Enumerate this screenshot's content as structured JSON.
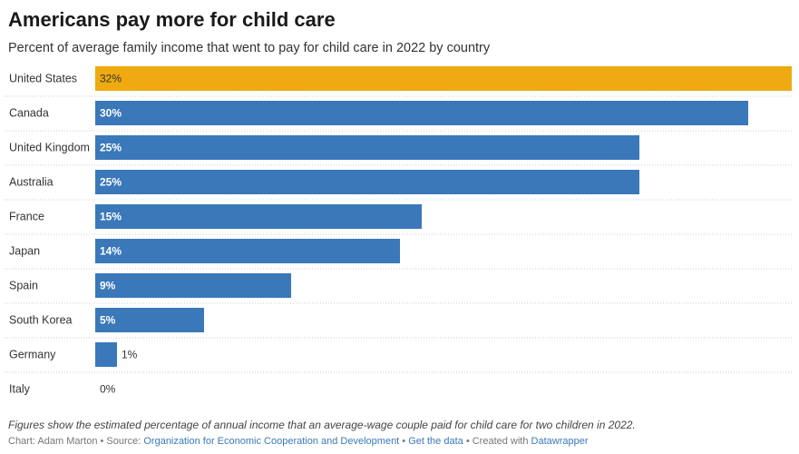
{
  "title": "Americans pay more for child care",
  "subtitle": "Percent of average family income that went to pay for child care in 2022 by country",
  "chart_data": {
    "type": "bar",
    "orientation": "horizontal",
    "categories": [
      "United States",
      "Canada",
      "United Kingdom",
      "Australia",
      "France",
      "Japan",
      "Spain",
      "South Korea",
      "Germany",
      "Italy"
    ],
    "values": [
      32,
      30,
      25,
      25,
      15,
      14,
      9,
      5,
      1,
      0
    ],
    "labels": [
      "32%",
      "30%",
      "25%",
      "25%",
      "15%",
      "14%",
      "9%",
      "5%",
      "1%",
      "0%"
    ],
    "value_unit": "%",
    "xlim": [
      0,
      32
    ],
    "highlight": "United States",
    "colors": {
      "default": "#3a78b9",
      "highlight": "#eeaa10",
      "grid": "#cccccc"
    },
    "title": "Americans pay more for child care",
    "xlabel": "",
    "ylabel": ""
  },
  "footer": {
    "note": "Figures show the estimated percentage of annual income that an average-wage couple paid for child care for two children in 2022.",
    "chart_prefix": "Chart: Adam Marton • Source: ",
    "source_link": "Organization for Economic Cooperation and Development",
    "sep1": " • ",
    "data_link": "Get the data",
    "sep2": " • Created with ",
    "created_link": "Datawrapper"
  }
}
